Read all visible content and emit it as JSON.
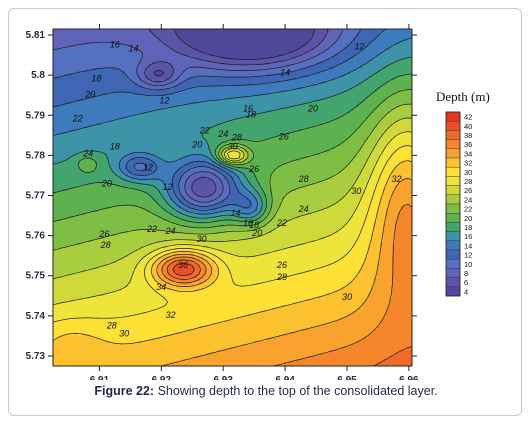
{
  "chart_data": {
    "type": "heatmap",
    "subtype": "filled-contour",
    "legend_title": "Depth (m)",
    "legend_position": "right",
    "x_ticks": [
      6.91,
      6.92,
      6.93,
      6.94,
      6.95,
      6.96
    ],
    "y_ticks": [
      5.73,
      5.74,
      5.75,
      5.76,
      5.77,
      5.78,
      5.79,
      5.8,
      5.81
    ],
    "xlim": [
      6.9025,
      6.9605
    ],
    "ylim": [
      5.7275,
      5.8115
    ],
    "grid": false,
    "levels": [
      4,
      6,
      8,
      10,
      12,
      14,
      16,
      18,
      20,
      22,
      24,
      26,
      28,
      30,
      32,
      34,
      36,
      38,
      40,
      42
    ],
    "level_colors": [
      "#50489a",
      "#5a55a8",
      "#5f64b8",
      "#5570c0",
      "#3f66b5",
      "#3d7bbd",
      "#3d93a8",
      "#43a56d",
      "#5db14f",
      "#7fbe45",
      "#a8cd3e",
      "#cfd93a",
      "#efe53a",
      "#fde135",
      "#fcc12f",
      "#f9a22e",
      "#f5862c",
      "#f06a2a",
      "#ec4e27",
      "#e63223"
    ],
    "contour_labels": [
      {
        "x": 6.9125,
        "y": 5.8075,
        "value": 16
      },
      {
        "x": 6.9155,
        "y": 5.8065,
        "value": 14
      },
      {
        "x": 6.9205,
        "y": 5.7935,
        "value": 12
      },
      {
        "x": 6.94,
        "y": 5.8005,
        "value": 14
      },
      {
        "x": 6.952,
        "y": 5.807,
        "value": 12
      },
      {
        "x": 6.934,
        "y": 5.7915,
        "value": 16
      },
      {
        "x": 6.9345,
        "y": 5.79,
        "value": 18
      },
      {
        "x": 6.9445,
        "y": 5.7915,
        "value": 20
      },
      {
        "x": 6.9398,
        "y": 5.7845,
        "value": 26
      },
      {
        "x": 6.9095,
        "y": 5.799,
        "value": 18
      },
      {
        "x": 6.9085,
        "y": 5.795,
        "value": 20
      },
      {
        "x": 6.9065,
        "y": 5.789,
        "value": 22
      },
      {
        "x": 6.9082,
        "y": 5.7803,
        "value": 24
      },
      {
        "x": 6.9125,
        "y": 5.782,
        "value": 18
      },
      {
        "x": 6.9178,
        "y": 5.7768,
        "value": 12
      },
      {
        "x": 6.9112,
        "y": 5.7728,
        "value": 20
      },
      {
        "x": 6.921,
        "y": 5.772,
        "value": 12
      },
      {
        "x": 6.9258,
        "y": 5.7825,
        "value": 20
      },
      {
        "x": 6.927,
        "y": 5.786,
        "value": 22
      },
      {
        "x": 6.93,
        "y": 5.7852,
        "value": 24
      },
      {
        "x": 6.9322,
        "y": 5.7843,
        "value": 28
      },
      {
        "x": 6.9315,
        "y": 5.782,
        "value": 30
      },
      {
        "x": 6.935,
        "y": 5.7765,
        "value": 26
      },
      {
        "x": 6.932,
        "y": 5.7655,
        "value": 14
      },
      {
        "x": 6.934,
        "y": 5.763,
        "value": 16
      },
      {
        "x": 6.935,
        "y": 5.7625,
        "value": 18
      },
      {
        "x": 6.9355,
        "y": 5.7605,
        "value": 20
      },
      {
        "x": 6.9395,
        "y": 5.763,
        "value": 22
      },
      {
        "x": 6.943,
        "y": 5.7665,
        "value": 24
      },
      {
        "x": 6.943,
        "y": 5.774,
        "value": 28
      },
      {
        "x": 6.9515,
        "y": 5.771,
        "value": 30
      },
      {
        "x": 6.958,
        "y": 5.774,
        "value": 32
      },
      {
        "x": 6.9185,
        "y": 5.7615,
        "value": 22
      },
      {
        "x": 6.9215,
        "y": 5.761,
        "value": 24
      },
      {
        "x": 6.9108,
        "y": 5.7603,
        "value": 26
      },
      {
        "x": 6.911,
        "y": 5.7575,
        "value": 28
      },
      {
        "x": 6.9265,
        "y": 5.759,
        "value": 30
      },
      {
        "x": 6.9395,
        "y": 5.7525,
        "value": 26
      },
      {
        "x": 6.9395,
        "y": 5.7495,
        "value": 28
      },
      {
        "x": 6.95,
        "y": 5.7445,
        "value": 30
      },
      {
        "x": 6.9235,
        "y": 5.7525,
        "value": 36
      },
      {
        "x": 6.92,
        "y": 5.747,
        "value": 34
      },
      {
        "x": 6.9215,
        "y": 5.74,
        "value": 32
      },
      {
        "x": 6.912,
        "y": 5.7375,
        "value": 28
      },
      {
        "x": 6.914,
        "y": 5.7355,
        "value": 30
      }
    ]
  },
  "caption": {
    "label": "Figure 22:",
    "text": "Showing depth to the top of the consolidated layer."
  }
}
